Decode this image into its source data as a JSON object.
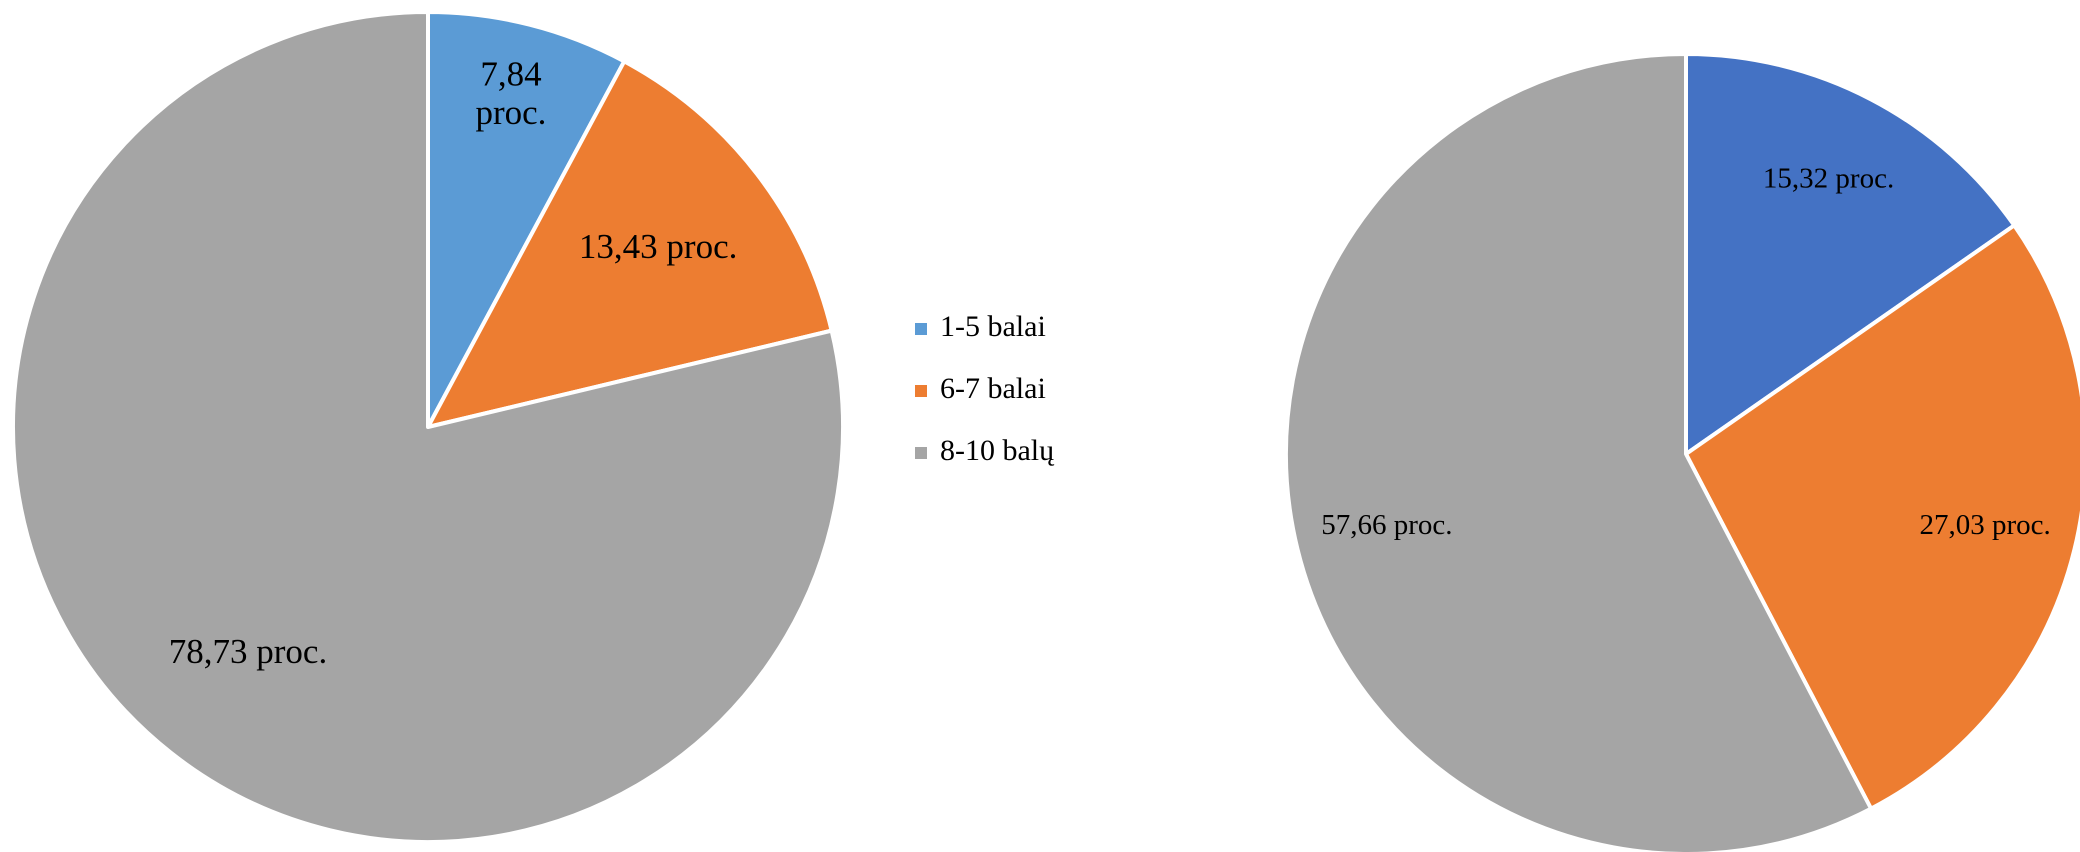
{
  "chart_data": [
    {
      "type": "pie",
      "categories": [
        "1-5 balai",
        "6-7 balai",
        "8-10 balų"
      ],
      "values": [
        7.84,
        13.43,
        78.73
      ],
      "value_labels": [
        "7,84 proc.",
        "13,43 proc.",
        "78,73 proc."
      ],
      "colors": [
        "#5b9bd5",
        "#ed7d31",
        "#a5a5a5"
      ],
      "legend": "right"
    },
    {
      "type": "pie",
      "values": [
        15.32,
        27.03,
        57.66
      ],
      "value_labels": [
        "15,32 proc.",
        "27,03 proc.",
        "57,66 proc."
      ],
      "colors": [
        "#4472c4",
        "#ed7d31",
        "#a5a5a5"
      ]
    }
  ]
}
